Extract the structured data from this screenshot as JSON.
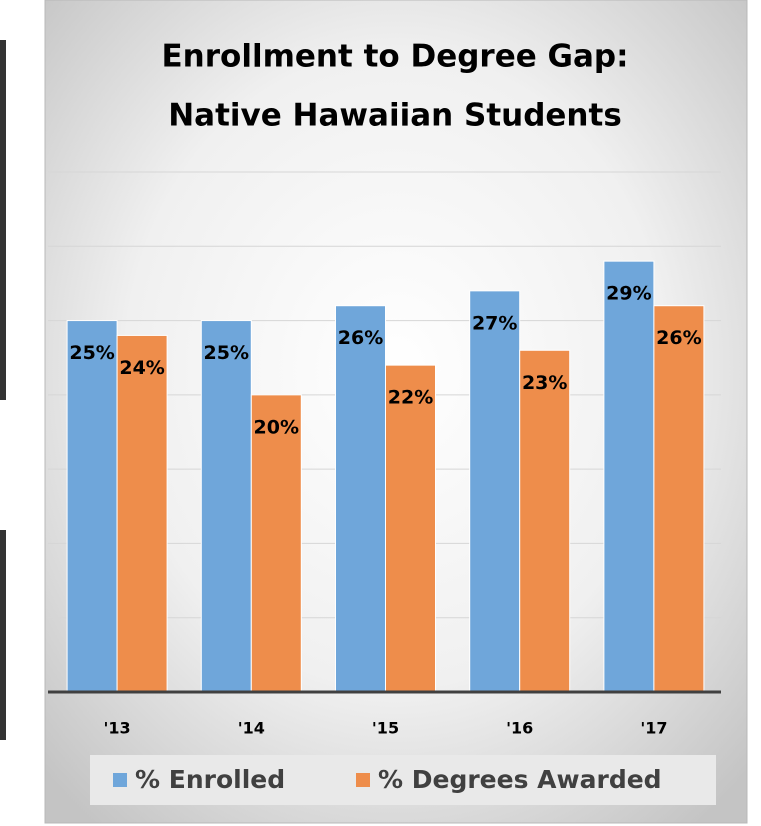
{
  "chart_data": {
    "type": "bar",
    "title": [
      "Enrollment to Degree Gap:",
      "Native Hawaiian Students"
    ],
    "categories": [
      "'13",
      "'14",
      "'15",
      "'16",
      "'17"
    ],
    "series": [
      {
        "name": "% Enrolled",
        "color": "#6fa6da",
        "values": [
          25,
          25,
          26,
          27,
          29
        ],
        "value_labels": [
          "25%",
          "25%",
          "26%",
          "27%",
          "29%"
        ]
      },
      {
        "name": "% Degrees Awarded",
        "color": "#ee8d4b",
        "values": [
          24,
          20,
          22,
          23,
          26
        ],
        "value_labels": [
          "24%",
          "20%",
          "22%",
          "23%",
          "26%"
        ]
      }
    ],
    "ylim": [
      0,
      35
    ],
    "yticks": [
      0,
      5,
      10,
      15,
      20,
      25,
      30,
      35
    ],
    "grid": true,
    "legend": "bottom"
  }
}
